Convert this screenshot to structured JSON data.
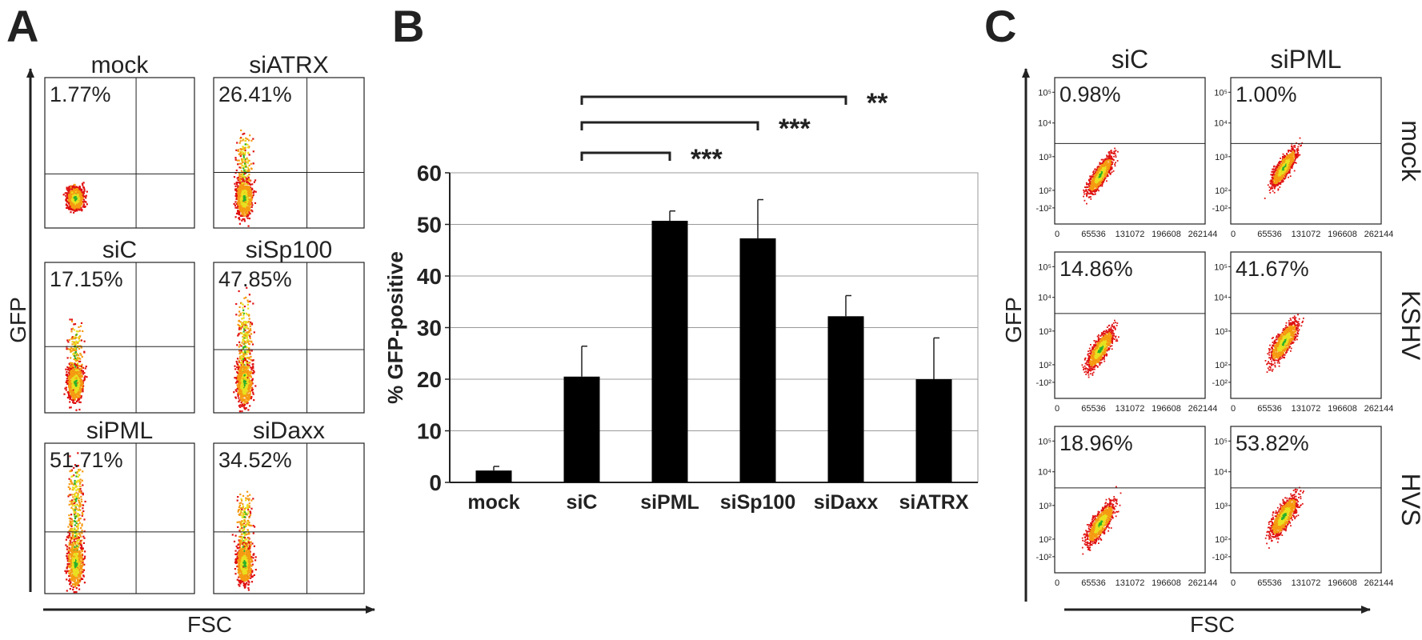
{
  "panels": {
    "a": {
      "letter": "A",
      "ylabel": "GFP",
      "xlabel": "FSC"
    },
    "b": {
      "letter": "B"
    },
    "c": {
      "letter": "C",
      "ylabel": "GFP",
      "xlabel": "FSC"
    }
  },
  "chart_data": [
    {
      "type": "scatter",
      "panel": "A",
      "xlabel": "FSC",
      "ylabel": "GFP",
      "plots": [
        {
          "title": "mock",
          "percent": "1.77%"
        },
        {
          "title": "siATRX",
          "percent": "26.41%"
        },
        {
          "title": "siC",
          "percent": "17.15%"
        },
        {
          "title": "siSp100",
          "percent": "47.85%"
        },
        {
          "title": "siPML",
          "percent": "51.71%"
        },
        {
          "title": "siDaxx",
          "percent": "34.52%"
        }
      ]
    },
    {
      "type": "bar",
      "panel": "B",
      "ylabel": "% GFP-positive",
      "categories": [
        "mock",
        "siC",
        "siPML",
        "siSp100",
        "siDaxx",
        "siATRX"
      ],
      "values": [
        2.3,
        20.5,
        50.7,
        47.3,
        32.2,
        20.0
      ],
      "errors": [
        0.8,
        5.9,
        1.9,
        7.5,
        4.0,
        8.0
      ],
      "ylim": [
        0,
        60
      ],
      "yticks": [
        "0",
        "10",
        "20",
        "30",
        "40",
        "50",
        "60"
      ],
      "grid": true,
      "significance": [
        {
          "from": "siC",
          "to": "siPML",
          "label": "***"
        },
        {
          "from": "siC",
          "to": "siSp100",
          "label": "***"
        },
        {
          "from": "siC",
          "to": "siDaxx",
          "label": "**"
        }
      ]
    },
    {
      "type": "scatter",
      "panel": "C",
      "xlabel": "FSC",
      "ylabel": "GFP",
      "columns": [
        "siC",
        "siPML"
      ],
      "rows": [
        "mock",
        "KSHV",
        "HVS"
      ],
      "xticks": [
        "0",
        "65536",
        "131072",
        "196608",
        "262144"
      ],
      "yticks": [
        "10⁵",
        "10⁴",
        "10³",
        "10²",
        "-10²"
      ],
      "percents": [
        [
          "0.98%",
          "1.00%"
        ],
        [
          "14.86%",
          "41.67%"
        ],
        [
          "18.96%",
          "53.82%"
        ]
      ]
    }
  ]
}
